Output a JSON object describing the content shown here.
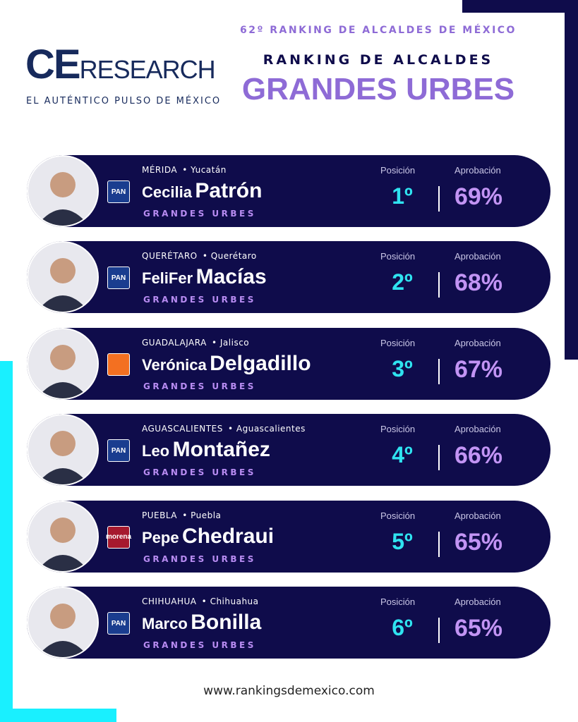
{
  "header": {
    "logo_main": "CE",
    "logo_rest": "RESEARCH",
    "tagline": "EL AUTÉNTICO PULSO DE MÉXICO",
    "edition": "62º RANKING DE ALCALDES DE MÉXICO",
    "title": "RANKING DE ALCALDES",
    "subtitle": "GRANDES URBES"
  },
  "columns": {
    "position": "Posición",
    "approval": "Aprobación"
  },
  "rows": [
    {
      "city": "MÉRIDA",
      "state": "• Yucatán",
      "first": "Cecilia",
      "last": "Patrón",
      "category": "GRANDES URBES",
      "party": "PAN",
      "logo_color": "#1a3d8f",
      "position": "1º",
      "approval": "69%"
    },
    {
      "city": "QUERÉTARO",
      "state": "• Querétaro",
      "first": "FeliFer",
      "last": "Macías",
      "category": "GRANDES URBES",
      "party": "PAN",
      "logo_color": "#1a3d8f",
      "position": "2º",
      "approval": "68%"
    },
    {
      "city": "GUADALAJARA",
      "state": "• Jalisco",
      "first": "Verónica",
      "last": "Delgadillo",
      "category": "GRANDES URBES",
      "logo_color": "#f37021",
      "position": "3º",
      "approval": "67%"
    },
    {
      "city": "AGUASCALIENTES",
      "state": "• Aguascalientes",
      "first": "Leo",
      "last": "Montañez",
      "category": "GRANDES URBES",
      "party": "PAN",
      "logo_color": "#1a3d8f",
      "position": "4º",
      "approval": "66%"
    },
    {
      "city": "PUEBLA",
      "state": "• Puebla",
      "first": "Pepe",
      "last": "Chedraui",
      "category": "GRANDES URBES",
      "party": "morena",
      "logo_color": "#a6192e",
      "position": "5º",
      "approval": "65%"
    },
    {
      "city": "CHIHUAHUA",
      "state": "• Chihuahua",
      "first": "Marco",
      "last": "Bonilla",
      "category": "GRANDES URBES",
      "party": "PAN",
      "logo_color": "#1a3d8f",
      "position": "6º",
      "approval": "65%"
    }
  ],
  "footer": {
    "url": "www.rankingsdemexico.com"
  }
}
